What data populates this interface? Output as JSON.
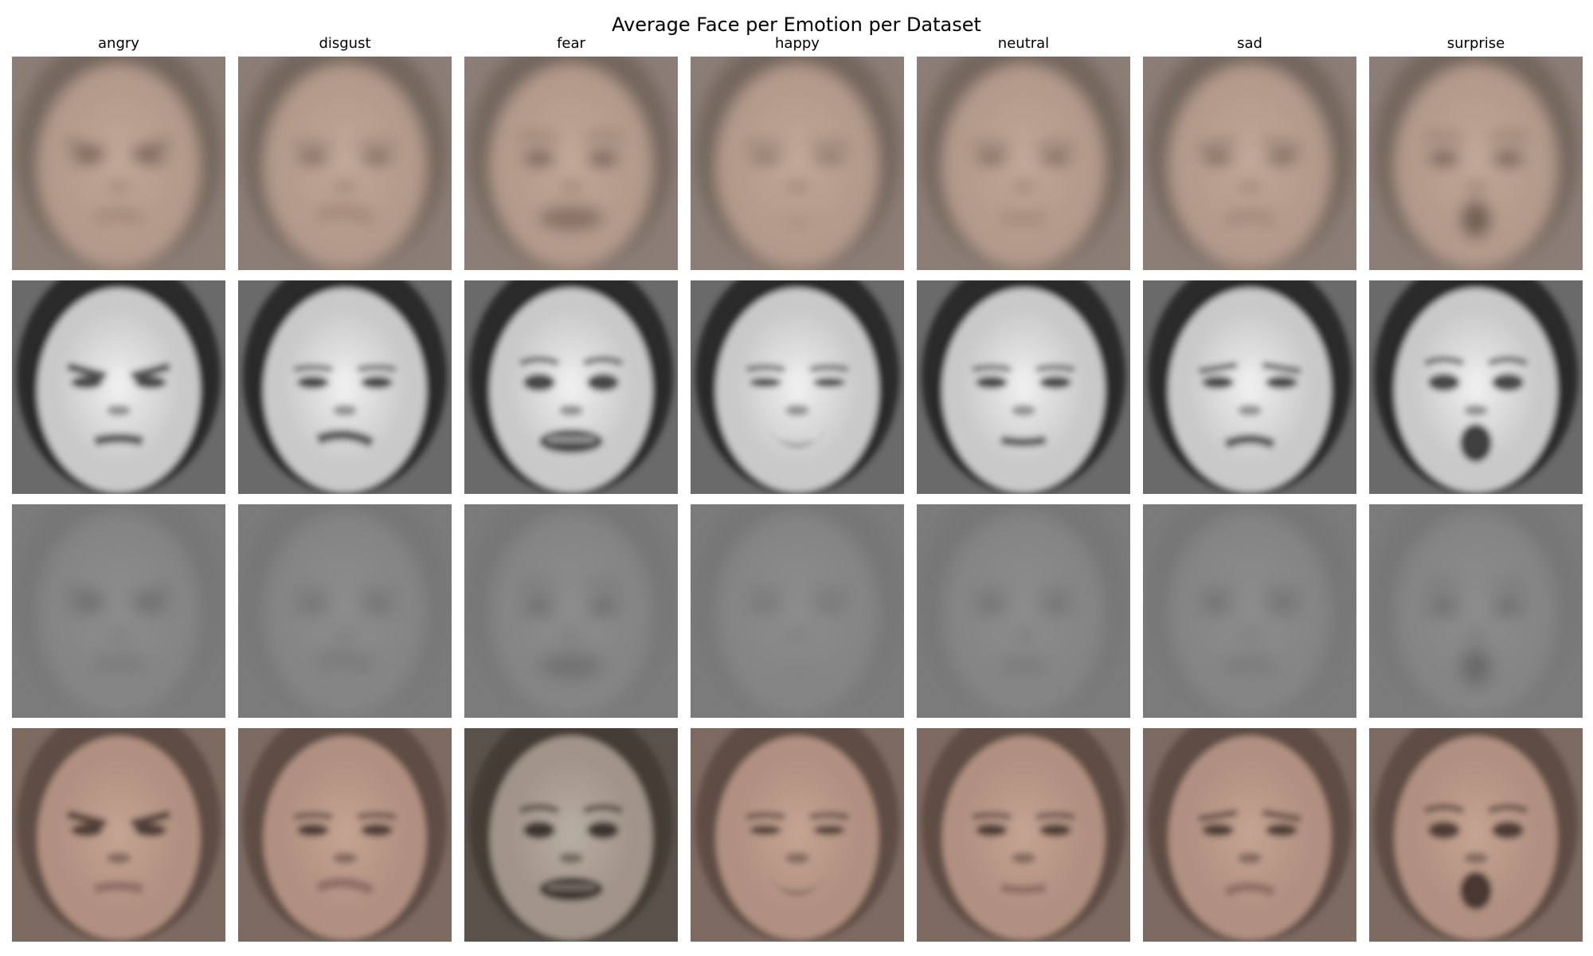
{
  "figure": {
    "title": "Average Face per Emotion per Dataset"
  },
  "emotions": [
    "angry",
    "disgust",
    "fear",
    "happy",
    "neutral",
    "sad",
    "surprise"
  ],
  "rows": [
    {
      "palette": {
        "bg": "#8a7e76",
        "hair": "#73665d",
        "skin": "#b39a8b",
        "hi": "#c2a898",
        "dark": "#6e5a50",
        "lip": "#9a7d72"
      },
      "blur": 9,
      "expressions": [
        "angry",
        "disgust",
        "fear",
        "happy",
        "neutral",
        "sad",
        "surprise"
      ]
    },
    {
      "palette": {
        "bg": "#6a6a6a",
        "hair": "#2a2a2a",
        "skin": "#c9c9c9",
        "hi": "#efefef",
        "dark": "#2f2f2f",
        "lip": "#555555"
      },
      "blur": 4,
      "expressions": [
        "angry",
        "disgust",
        "fear",
        "happy",
        "neutral",
        "sad",
        "surprise"
      ]
    },
    {
      "palette": {
        "bg": "#7b7b7b",
        "hair": "#767676",
        "skin": "#858585",
        "hi": "#8e8e8e",
        "dark": "#646464",
        "lip": "#6e6e6e"
      },
      "blur": 11,
      "expressions": [
        "angry",
        "disgust",
        "fear",
        "happy",
        "neutral",
        "sad",
        "surprise"
      ]
    },
    {
      "palette": {
        "bg": "#7d6a60",
        "hair": "#5f4e45",
        "skin": "#b09080",
        "hi": "#c4a392",
        "dark": "#3d2e28",
        "lip": "#8e6e64"
      },
      "blur": 4,
      "expressions": [
        "angry",
        "disgust",
        "fear",
        "happy",
        "neutral",
        "sad",
        "surprise"
      ]
    }
  ],
  "fear_row4_palette": {
    "bg": "#5b524c",
    "hair": "#453c36",
    "skin": "#a09488",
    "hi": "#b8ada2",
    "dark": "#2a2320",
    "lip": "#3c2f2a"
  }
}
